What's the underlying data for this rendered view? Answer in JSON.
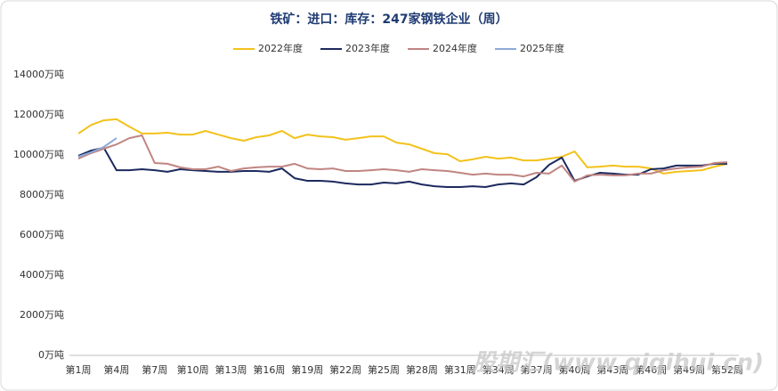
{
  "chart_data": {
    "type": "line",
    "title": "铁矿：进口：库存：247家钢铁企业（周）",
    "watermark": "股期汇(www.qiqihui.cn)",
    "categories": [
      "第1周",
      null,
      null,
      "第4周",
      null,
      null,
      "第7周",
      null,
      null,
      "第10周",
      null,
      null,
      "第13周",
      null,
      null,
      "第16周",
      null,
      null,
      "第19周",
      null,
      null,
      "第22周",
      null,
      null,
      "第25周",
      null,
      null,
      "第28周",
      null,
      null,
      "第31周",
      null,
      null,
      "第34周",
      null,
      null,
      "第37周",
      null,
      null,
      "第40周",
      null,
      null,
      "第43周",
      null,
      null,
      "第46周",
      null,
      null,
      "第49周",
      null,
      null,
      "第52周"
    ],
    "series": [
      {
        "name": "2022年度",
        "color": "#f2c21b",
        "values": [
          11070,
          11500,
          11730,
          11780,
          11420,
          11070,
          11070,
          11110,
          11020,
          11020,
          11200,
          11020,
          10840,
          10710,
          10890,
          10980,
          11200,
          10840,
          11020,
          10930,
          10890,
          10760,
          10840,
          10930,
          10930,
          10620,
          10530,
          10310,
          10090,
          10040,
          9690,
          9780,
          9910,
          9820,
          9870,
          9730,
          9730,
          9820,
          9910,
          10180,
          9380,
          9420,
          9470,
          9420,
          9420,
          9330,
          9070,
          9160,
          9200,
          9240,
          9420,
          9560
        ]
      },
      {
        "name": "2023年度",
        "color": "#1c2a5e",
        "values": [
          9960,
          10220,
          10360,
          9240,
          9240,
          9290,
          9240,
          9160,
          9290,
          9240,
          9200,
          9160,
          9160,
          9200,
          9200,
          9160,
          9330,
          8840,
          8710,
          8710,
          8670,
          8580,
          8530,
          8530,
          8620,
          8580,
          8670,
          8530,
          8440,
          8400,
          8400,
          8440,
          8400,
          8530,
          8580,
          8530,
          8890,
          9510,
          9870,
          8710,
          8930,
          9110,
          9070,
          9020,
          9020,
          9290,
          9330,
          9470,
          9470,
          9470,
          9560,
          9560
        ]
      },
      {
        "name": "2024年度",
        "color": "#c08582",
        "values": [
          9820,
          10090,
          10310,
          10530,
          10840,
          10980,
          9600,
          9560,
          9380,
          9290,
          9290,
          9420,
          9200,
          9330,
          9380,
          9420,
          9420,
          9560,
          9330,
          9290,
          9330,
          9200,
          9200,
          9240,
          9290,
          9240,
          9160,
          9290,
          9240,
          9200,
          9110,
          9020,
          9070,
          9020,
          9020,
          8930,
          9110,
          9070,
          9470,
          8670,
          8980,
          9020,
          8980,
          8980,
          9070,
          9070,
          9240,
          9330,
          9380,
          9420,
          9600,
          9640
        ]
      },
      {
        "name": "2025年度",
        "color": "#8eaad8",
        "values": [
          9910,
          10130,
          10400,
          10840,
          null,
          null,
          null,
          null,
          null,
          null,
          null,
          null,
          null,
          null,
          null,
          null,
          null,
          null,
          null,
          null,
          null,
          null,
          null,
          null,
          null,
          null,
          null,
          null,
          null,
          null,
          null,
          null,
          null,
          null,
          null,
          null,
          null,
          null,
          null,
          null,
          null,
          null,
          null,
          null,
          null,
          null,
          null,
          null,
          null,
          null,
          null,
          null
        ]
      }
    ],
    "ylim": [
      0,
      14000
    ],
    "yticks": [
      {
        "value": 0,
        "label": "0万吨"
      },
      {
        "value": 2000,
        "label": "2000万吨"
      },
      {
        "value": 4000,
        "label": "4000万吨"
      },
      {
        "value": 6000,
        "label": "6000万吨"
      },
      {
        "value": 8000,
        "label": "8000万吨"
      },
      {
        "value": 10000,
        "label": "10000万吨"
      },
      {
        "value": 12000,
        "label": "12000万吨"
      },
      {
        "value": 14000,
        "label": "14000万吨"
      }
    ],
    "grid": false,
    "legend": "top"
  }
}
